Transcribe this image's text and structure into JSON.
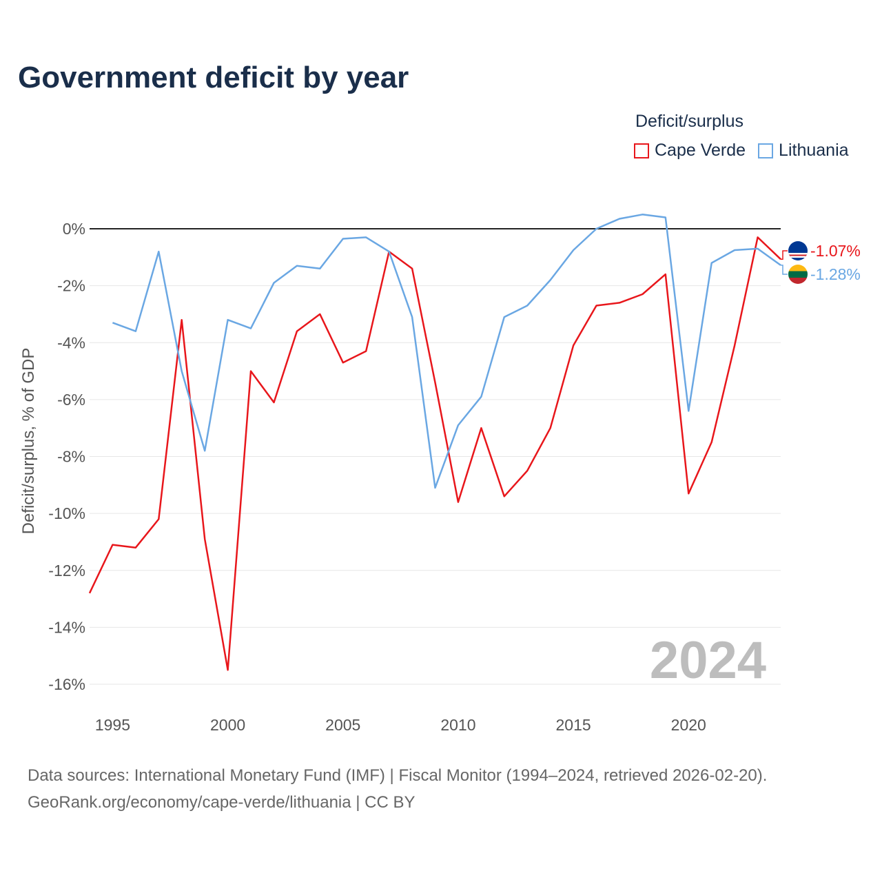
{
  "title": "Government deficit by year",
  "legend": {
    "title": "Deficit/surplus",
    "items": [
      {
        "name": "Cape Verde",
        "color": "#e8161b"
      },
      {
        "name": "Lithuania",
        "color": "#6aa7e3"
      }
    ]
  },
  "source": {
    "line1": "Data sources: International Monetary Fund (IMF) | Fiscal Monitor (1994–2024, retrieved 2026-02-20).",
    "line2": "GeoRank.org/economy/cape-verde/lithuania | CC BY"
  },
  "chart_data": {
    "type": "line",
    "title": "Government deficit by year",
    "xlabel": "",
    "ylabel": "Deficit/surplus, % of GDP",
    "xlim": [
      1994,
      2024
    ],
    "ylim": [
      -16,
      0.5
    ],
    "yticks": [
      0,
      -2,
      -4,
      -6,
      -8,
      -10,
      -12,
      -14,
      -16
    ],
    "ytick_labels": [
      "0%",
      "-2%",
      "-4%",
      "-6%",
      "-8%",
      "-10%",
      "-12%",
      "-14%",
      "-16%"
    ],
    "xticks": [
      1995,
      2000,
      2005,
      2010,
      2015,
      2020
    ],
    "xtick_labels": [
      "1995",
      "2000",
      "2005",
      "2010",
      "2015",
      "2020"
    ],
    "watermark_year": "2024",
    "series": [
      {
        "name": "Cape Verde",
        "color": "#e8161b",
        "end_label": "-1.07%",
        "x": [
          1994,
          1995,
          1996,
          1997,
          1998,
          1999,
          2000,
          2001,
          2002,
          2003,
          2004,
          2005,
          2006,
          2007,
          2008,
          2009,
          2010,
          2011,
          2012,
          2013,
          2014,
          2015,
          2016,
          2017,
          2018,
          2019,
          2020,
          2021,
          2022,
          2023,
          2024
        ],
        "values": [
          -12.8,
          -11.1,
          -11.2,
          -10.2,
          -3.2,
          -10.9,
          -15.5,
          -5.0,
          -6.1,
          -3.6,
          -3.0,
          -4.7,
          -4.3,
          -0.8,
          -1.4,
          -5.4,
          -9.6,
          -7.0,
          -9.4,
          -8.5,
          -7.0,
          -4.1,
          -2.7,
          -2.6,
          -2.3,
          -1.6,
          -9.3,
          -7.5,
          -4.1,
          -0.3,
          -1.07
        ]
      },
      {
        "name": "Lithuania",
        "color": "#6aa7e3",
        "end_label": "-1.28%",
        "x": [
          1995,
          1996,
          1997,
          1998,
          1999,
          2000,
          2001,
          2002,
          2003,
          2004,
          2005,
          2006,
          2007,
          2008,
          2009,
          2010,
          2011,
          2012,
          2013,
          2014,
          2015,
          2016,
          2017,
          2018,
          2019,
          2020,
          2021,
          2022,
          2023,
          2024
        ],
        "values": [
          -3.3,
          -3.6,
          -0.8,
          -5.0,
          -7.8,
          -3.2,
          -3.5,
          -1.9,
          -1.3,
          -1.4,
          -0.35,
          -0.3,
          -0.8,
          -3.1,
          -9.1,
          -6.9,
          -5.9,
          -3.1,
          -2.7,
          -1.8,
          -0.75,
          0.0,
          0.35,
          0.5,
          0.4,
          -6.4,
          -1.2,
          -0.75,
          -0.7,
          -1.28
        ]
      }
    ]
  }
}
